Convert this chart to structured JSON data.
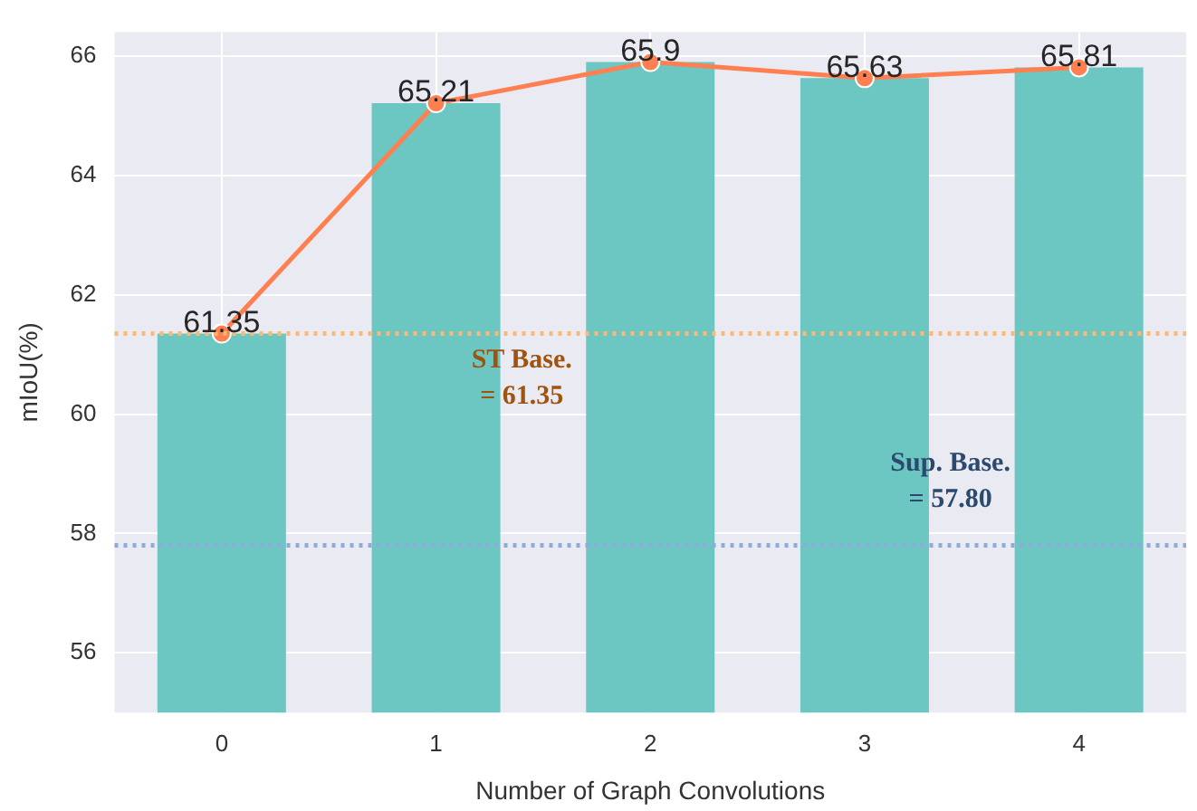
{
  "chart_data": {
    "type": "bar",
    "xlabel": "Number of Graph Convolutions",
    "ylabel": "mIoU(%)",
    "categories": [
      "0",
      "1",
      "2",
      "3",
      "4"
    ],
    "series": [
      {
        "color": "#6cc7c2",
        "values": [
          61.35,
          65.21,
          65.9,
          65.63,
          65.81
        ]
      },
      {
        "type": "line",
        "color": "#ff7f50",
        "values": [
          61.35,
          65.21,
          65.9,
          65.63,
          65.81
        ],
        "value_labels": [
          "61.35",
          "65.21",
          "65.9",
          "65.63",
          "65.81"
        ]
      }
    ],
    "ylim": [
      55,
      66.4
    ],
    "yticks": [
      56,
      58,
      60,
      62,
      64,
      66
    ],
    "ref_lines": [
      {
        "axis": "y",
        "value": 61.35,
        "label": "ST Base.\n= 61.35",
        "color": "#ffb870",
        "line_style": "dotted"
      },
      {
        "axis": "y",
        "value": 57.8,
        "label": "Sup. Base.\n= 57.80",
        "color": "#8fabd9",
        "line_style": "dotted"
      }
    ],
    "grid": true,
    "legend": false,
    "marker": "circle",
    "line_style": "solid"
  }
}
